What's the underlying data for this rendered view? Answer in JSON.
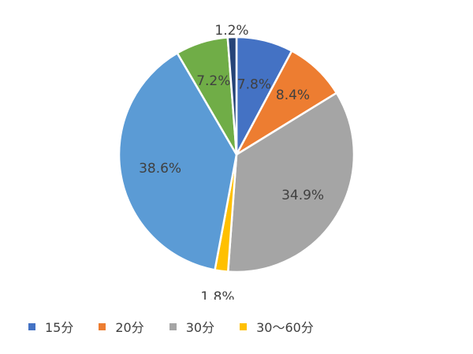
{
  "chart_data": {
    "type": "pie",
    "start_angle_deg": 0,
    "direction": "clockwise",
    "slices": [
      {
        "label": "7.8%",
        "value": 7.8,
        "color": "#4472c4",
        "legend": "15分"
      },
      {
        "label": "8.4%",
        "value": 8.4,
        "color": "#ed7d31",
        "legend": "20分"
      },
      {
        "label": "34.9%",
        "value": 34.9,
        "color": "#a5a5a5",
        "legend": "30分"
      },
      {
        "label": "1.8%",
        "value": 1.8,
        "color": "#ffc000",
        "legend": "30～60分"
      },
      {
        "label": "38.6%",
        "value": 38.6,
        "color": "#5b9bd5",
        "legend": null
      },
      {
        "label": "7.2%",
        "value": 7.2,
        "color": "#70ad47",
        "legend": null
      },
      {
        "label": "1.2%",
        "value": 1.2,
        "color": "#264478",
        "legend": null
      }
    ],
    "legend_placement": "bottom",
    "legend": [
      {
        "label": "15分",
        "color": "#4472c4"
      },
      {
        "label": "20分",
        "color": "#ed7d31"
      },
      {
        "label": "30分",
        "color": "#a5a5a5"
      },
      {
        "label": "30～60分",
        "color": "#ffc000"
      }
    ]
  }
}
